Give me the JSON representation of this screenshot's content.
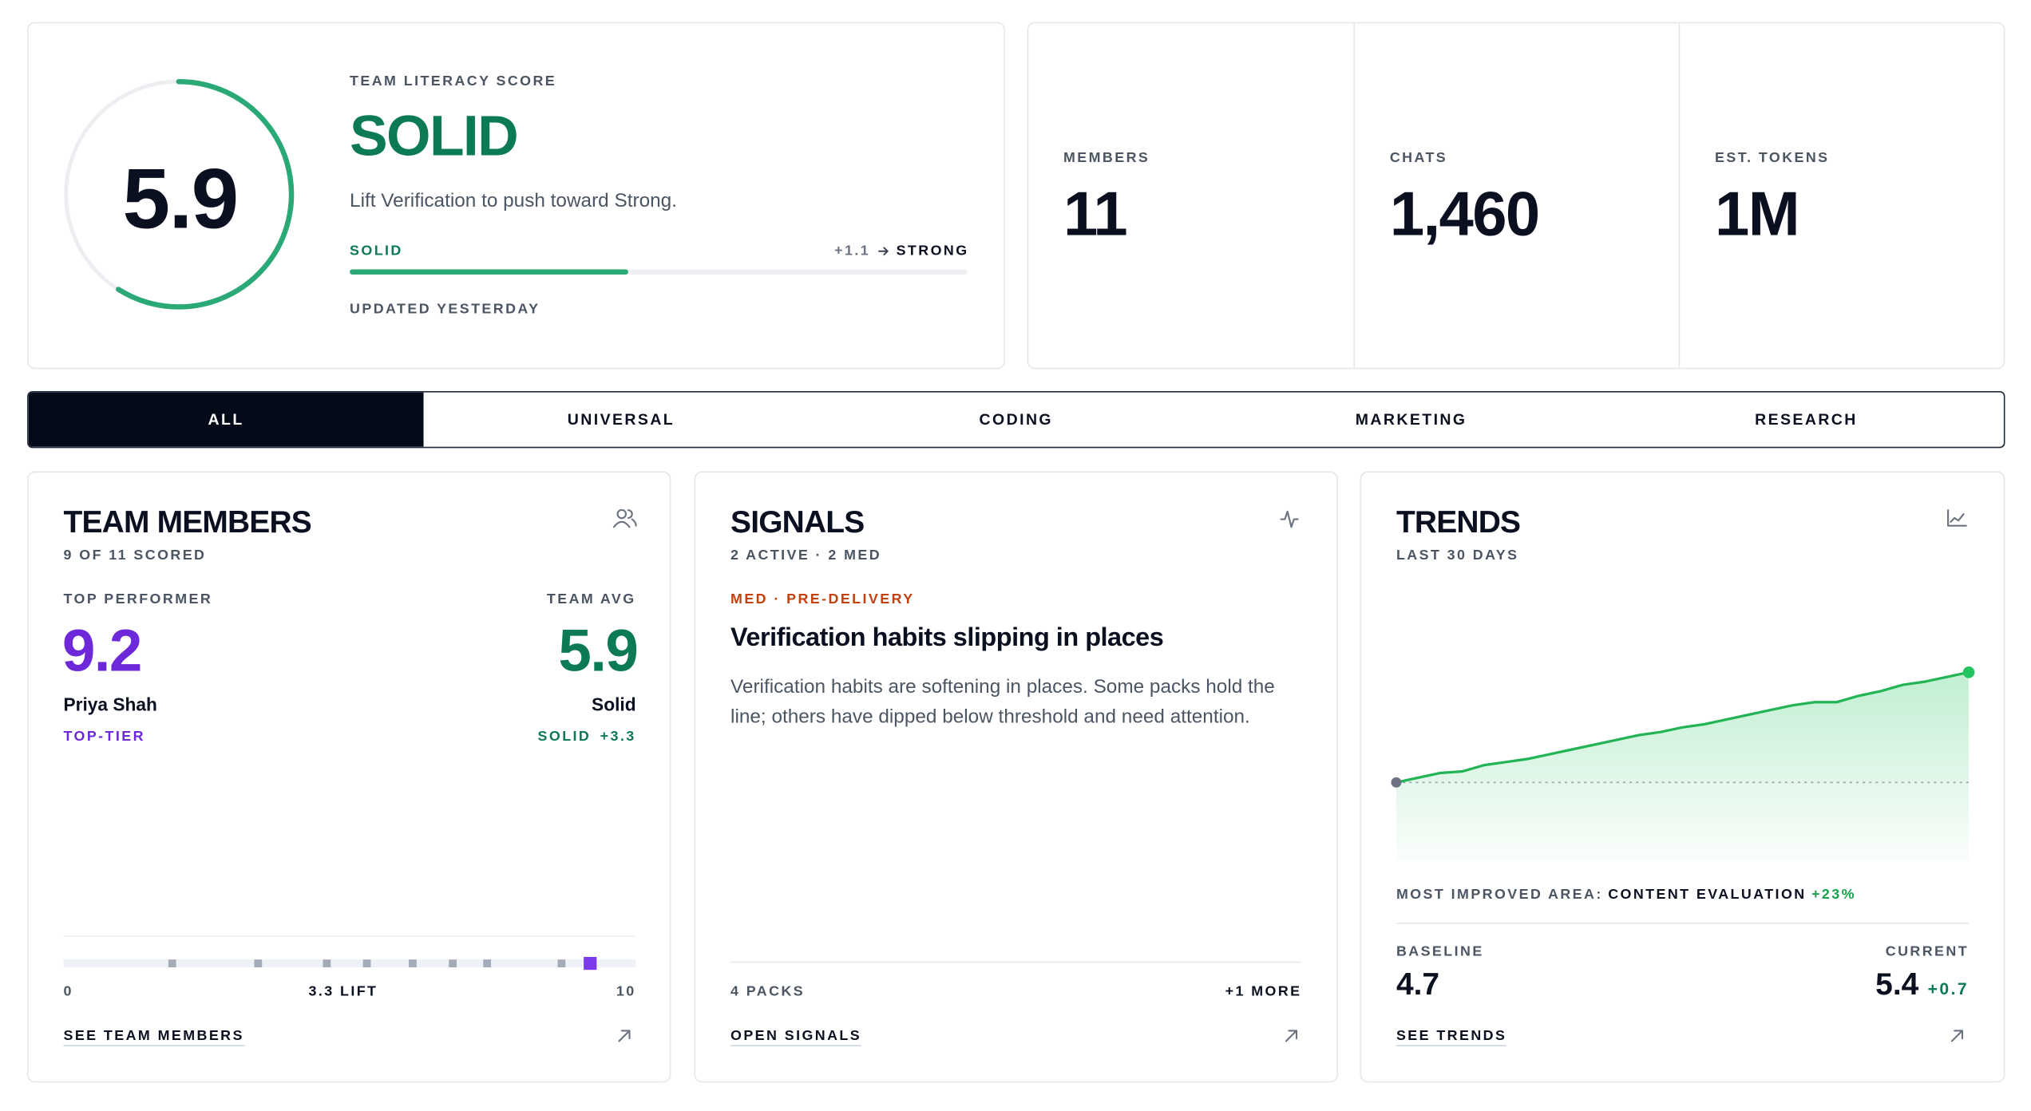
{
  "score_card": {
    "label": "TEAM LITERACY SCORE",
    "score": 5.9,
    "level": "SOLID",
    "message": "Lift Verification to push toward Strong.",
    "progress": {
      "current": "SOLID",
      "gap": "+1.1",
      "next": "STRONG"
    },
    "updated": "UPDATED YESTERDAY"
  },
  "stats": [
    {
      "label": "MEMBERS",
      "value": 11
    },
    {
      "label": "CHATS",
      "value": "1,460"
    },
    {
      "label": "EST. TOKENS",
      "value": "1M"
    }
  ],
  "tabs": {
    "items": [
      "ALL",
      "UNIVERSAL",
      "CODING",
      "MARKETING",
      "RESEARCH"
    ],
    "active": 0
  },
  "team_members": {
    "title": "TEAM MEMBERS",
    "subtitle": "9 OF 11 SCORED",
    "top_label": "TOP PERFORMER",
    "top_score": 9.2,
    "top_name": "Priya Shah",
    "top_tier": "TOP-TIER",
    "avg_label": "TEAM AVG",
    "avg_score": 5.9,
    "avg_level": "Solid",
    "avg_tag": "SOLID",
    "lift": "+3.3",
    "scores": [
      1.9,
      3.4,
      4.6,
      5.3,
      6.1,
      6.8,
      7.4,
      8.7,
      9.2
    ],
    "scale_min": 0,
    "scale_max": 10,
    "scale_caption": "3.3 LIFT",
    "link": "SEE TEAM MEMBERS"
  },
  "signals": {
    "title": "SIGNALS",
    "subtitle": "2 ACTIVE · 2 MED",
    "tag": "MED · PRE-DELIVERY",
    "headline": "Verification habits slipping in places",
    "body": "Verification habits are softening in places. Some packs hold the line; others have dipped below threshold and need attention.",
    "packs": "4 PACKS",
    "more": "+1 MORE",
    "link": "OPEN SIGNALS"
  },
  "trends": {
    "title": "TRENDS",
    "subtitle": "LAST 30 DAYS",
    "chart": {
      "type": "line",
      "values": [
        4.7,
        4.73,
        4.76,
        4.77,
        4.81,
        4.83,
        4.85,
        4.88,
        4.91,
        4.94,
        4.97,
        5.0,
        5.02,
        5.05,
        5.07,
        5.1,
        5.13,
        5.16,
        5.19,
        5.21,
        5.21,
        5.25,
        5.28,
        5.32,
        5.34,
        5.37,
        5.4
      ],
      "ylim": [
        4.2,
        5.5
      ]
    },
    "improved_label": "MOST IMPROVED AREA:",
    "improved_area": "CONTENT EVALUATION",
    "improved_change": "+23%",
    "baseline_label": "BASELINE",
    "baseline": 4.7,
    "current_label": "CURRENT",
    "current": 5.4,
    "change": "+0.7",
    "link": "SEE TRENDS"
  }
}
